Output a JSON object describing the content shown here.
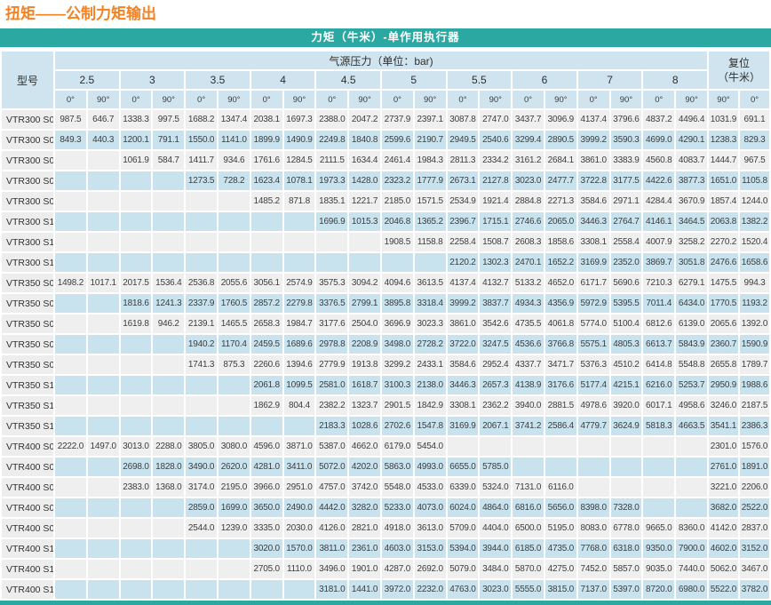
{
  "title": "扭矩——公制力矩输出",
  "colors": {
    "teal": "#2ba8a2",
    "title_orange": "#f58220",
    "header_blue": "#cfe4ef",
    "stripe_blue": "#c8e2ee",
    "stripe_gray": "#efefef",
    "model_col_gray": "#ededed"
  },
  "table": {
    "banner": "力矩（牛米）-单作用执行器",
    "model_header": "型号",
    "pressure_header": "气源压力（单位：bar)",
    "reset_header_line1": "复位",
    "reset_header_line2": "（牛米）",
    "pressures": [
      "2.5",
      "3",
      "3.5",
      "4",
      "4.5",
      "5",
      "5.5",
      "6",
      "7",
      "8"
    ],
    "deg0": "0°",
    "deg90": "90°",
    "reset_degrees": [
      "90°",
      "0°"
    ],
    "rows": [
      {
        "model": "VTR300 S05",
        "values": [
          "987.5",
          "646.7",
          "1338.3",
          "997.5",
          "1688.2",
          "1347.4",
          "2038.1",
          "1697.3",
          "2388.0",
          "2047.2",
          "2737.9",
          "2397.1",
          "3087.8",
          "2747.0",
          "3437.7",
          "3096.9",
          "4137.4",
          "3796.6",
          "4837.2",
          "4496.4",
          "1031.9",
          "691.1"
        ]
      },
      {
        "model": "VTR300 S06",
        "values": [
          "849.3",
          "440.3",
          "1200.1",
          "791.1",
          "1550.0",
          "1141.0",
          "1899.9",
          "1490.9",
          "2249.8",
          "1840.8",
          "2599.6",
          "2190.7",
          "2949.5",
          "2540.6",
          "3299.4",
          "2890.5",
          "3999.2",
          "3590.3",
          "4699.0",
          "4290.1",
          "1238.3",
          "829.3"
        ]
      },
      {
        "model": "VTR300 S07",
        "values": [
          null,
          null,
          "1061.9",
          "584.7",
          "1411.7",
          "934.6",
          "1761.6",
          "1284.5",
          "2111.5",
          "1634.4",
          "2461.4",
          "1984.3",
          "2811.3",
          "2334.2",
          "3161.2",
          "2684.1",
          "3861.0",
          "3383.9",
          "4560.8",
          "4083.7",
          "1444.7",
          "967.5"
        ]
      },
      {
        "model": "VTR300 S08",
        "values": [
          null,
          null,
          null,
          null,
          "1273.5",
          "728.2",
          "1623.4",
          "1078.1",
          "1973.3",
          "1428.0",
          "2323.2",
          "1777.9",
          "2673.1",
          "2127.8",
          "3023.0",
          "2477.7",
          "3722.8",
          "3177.5",
          "4422.6",
          "3877.3",
          "1651.0",
          "1105.8"
        ]
      },
      {
        "model": "VTR300 S09",
        "values": [
          null,
          null,
          null,
          null,
          null,
          null,
          "1485.2",
          "871.8",
          "1835.1",
          "1221.7",
          "2185.0",
          "1571.5",
          "2534.9",
          "1921.4",
          "2884.8",
          "2271.3",
          "3584.6",
          "2971.1",
          "4284.4",
          "3670.9",
          "1857.4",
          "1244.0"
        ]
      },
      {
        "model": "VTR300 S10",
        "values": [
          null,
          null,
          null,
          null,
          null,
          null,
          null,
          null,
          "1696.9",
          "1015.3",
          "2046.8",
          "1365.2",
          "2396.7",
          "1715.1",
          "2746.6",
          "2065.0",
          "3446.3",
          "2764.7",
          "4146.1",
          "3464.5",
          "2063.8",
          "1382.2"
        ]
      },
      {
        "model": "VTR300 S11",
        "values": [
          null,
          null,
          null,
          null,
          null,
          null,
          null,
          null,
          null,
          null,
          "1908.5",
          "1158.8",
          "2258.4",
          "1508.7",
          "2608.3",
          "1858.6",
          "3308.1",
          "2558.4",
          "4007.9",
          "3258.2",
          "2270.2",
          "1520.4"
        ]
      },
      {
        "model": "VTR300 S12",
        "values": [
          null,
          null,
          null,
          null,
          null,
          null,
          null,
          null,
          null,
          null,
          null,
          null,
          "2120.2",
          "1302.3",
          "2470.1",
          "1652.2",
          "3169.9",
          "2352.0",
          "3869.7",
          "3051.8",
          "2476.6",
          "1658.6"
        ]
      },
      {
        "model": "VTR350 S05",
        "values": [
          "1498.2",
          "1017.1",
          "2017.5",
          "1536.4",
          "2536.8",
          "2055.6",
          "3056.1",
          "2574.9",
          "3575.3",
          "3094.2",
          "4094.6",
          "3613.5",
          "4137.4",
          "4132.7",
          "5133.2",
          "4652.0",
          "6171.7",
          "5690.6",
          "7210.3",
          "6279.1",
          "1475.5",
          "994.3"
        ]
      },
      {
        "model": "VTR350 S06",
        "values": [
          null,
          null,
          "1818.6",
          "1241.3",
          "2337.9",
          "1760.5",
          "2857.2",
          "2279.8",
          "3376.5",
          "2799.1",
          "3895.8",
          "3318.4",
          "3999.2",
          "3837.7",
          "4934.3",
          "4356.9",
          "5972.9",
          "5395.5",
          "7011.4",
          "6434.0",
          "1770.5",
          "1193.2"
        ]
      },
      {
        "model": "VTR350 S07",
        "values": [
          null,
          null,
          "1619.8",
          "946.2",
          "2139.1",
          "1465.5",
          "2658.3",
          "1984.7",
          "3177.6",
          "2504.0",
          "3696.9",
          "3023.3",
          "3861.0",
          "3542.6",
          "4735.5",
          "4061.8",
          "5774.0",
          "5100.4",
          "6812.6",
          "6139.0",
          "2065.6",
          "1392.0"
        ]
      },
      {
        "model": "VTR350 S08",
        "values": [
          null,
          null,
          null,
          null,
          "1940.2",
          "1170.4",
          "2459.5",
          "1689.6",
          "2978.8",
          "2208.9",
          "3498.0",
          "2728.2",
          "3722.0",
          "3247.5",
          "4536.6",
          "3766.8",
          "5575.1",
          "4805.3",
          "6613.7",
          "5843.9",
          "2360.7",
          "1590.9"
        ]
      },
      {
        "model": "VTR350 S09",
        "values": [
          null,
          null,
          null,
          null,
          "1741.3",
          "875.3",
          "2260.6",
          "1394.6",
          "2779.9",
          "1913.8",
          "3299.2",
          "2433.1",
          "3584.6",
          "2952.4",
          "4337.7",
          "3471.7",
          "5376.3",
          "4510.2",
          "6414.8",
          "5548.8",
          "2655.8",
          "1789.7"
        ]
      },
      {
        "model": "VTR350 S10",
        "values": [
          null,
          null,
          null,
          null,
          null,
          null,
          "2061.8",
          "1099.5",
          "2581.0",
          "1618.7",
          "3100.3",
          "2138.0",
          "3446.3",
          "2657.3",
          "4138.9",
          "3176.6",
          "5177.4",
          "4215.1",
          "6216.0",
          "5253.7",
          "2950.9",
          "1988.6"
        ]
      },
      {
        "model": "VTR350 S11",
        "values": [
          null,
          null,
          null,
          null,
          null,
          null,
          "1862.9",
          "804.4",
          "2382.2",
          "1323.7",
          "2901.5",
          "1842.9",
          "3308.1",
          "2362.2",
          "3940.0",
          "2881.5",
          "4978.6",
          "3920.0",
          "6017.1",
          "4958.6",
          "3246.0",
          "2187.5"
        ]
      },
      {
        "model": "VTR350 S12",
        "values": [
          null,
          null,
          null,
          null,
          null,
          null,
          null,
          null,
          "2183.3",
          "1028.6",
          "2702.6",
          "1547.8",
          "3169.9",
          "2067.1",
          "3741.2",
          "2586.4",
          "4779.7",
          "3624.9",
          "5818.3",
          "4663.5",
          "3541.1",
          "2386.3"
        ]
      },
      {
        "model": "VTR400 S05",
        "values": [
          "2222.0",
          "1497.0",
          "3013.0",
          "2288.0",
          "3805.0",
          "3080.0",
          "4596.0",
          "3871.0",
          "5387.0",
          "4662.0",
          "6179.0",
          "5454.0",
          null,
          null,
          null,
          null,
          null,
          null,
          null,
          null,
          "2301.0",
          "1576.0"
        ]
      },
      {
        "model": "VTR400 S06",
        "values": [
          null,
          null,
          "2698.0",
          "1828.0",
          "3490.0",
          "2620.0",
          "4281.0",
          "3411.0",
          "5072.0",
          "4202.0",
          "5863.0",
          "4993.0",
          "6655.0",
          "5785.0",
          null,
          null,
          null,
          null,
          null,
          null,
          "2761.0",
          "1891.0"
        ]
      },
      {
        "model": "VTR400 S07",
        "values": [
          null,
          null,
          "2383.0",
          "1368.0",
          "3174.0",
          "2195.0",
          "3966.0",
          "2951.0",
          "4757.0",
          "3742.0",
          "5548.0",
          "4533.0",
          "6339.0",
          "5324.0",
          "7131.0",
          "6116.0",
          null,
          null,
          null,
          null,
          "3221.0",
          "2206.0"
        ]
      },
      {
        "model": "VTR400 S08",
        "values": [
          null,
          null,
          null,
          null,
          "2859.0",
          "1699.0",
          "3650.0",
          "2490.0",
          "4442.0",
          "3282.0",
          "5233.0",
          "4073.0",
          "6024.0",
          "4864.0",
          "6816.0",
          "5656.0",
          "8398.0",
          "7328.0",
          null,
          null,
          "3682.0",
          "2522.0"
        ]
      },
      {
        "model": "VTR400 S09",
        "values": [
          null,
          null,
          null,
          null,
          "2544.0",
          "1239.0",
          "3335.0",
          "2030.0",
          "4126.0",
          "2821.0",
          "4918.0",
          "3613.0",
          "5709.0",
          "4404.0",
          "6500.0",
          "5195.0",
          "8083.0",
          "6778.0",
          "9665.0",
          "8360.0",
          "4142.0",
          "2837.0"
        ]
      },
      {
        "model": "VTR400 S10",
        "values": [
          null,
          null,
          null,
          null,
          null,
          null,
          "3020.0",
          "1570.0",
          "3811.0",
          "2361.0",
          "4603.0",
          "3153.0",
          "5394.0",
          "3944.0",
          "6185.0",
          "4735.0",
          "7768.0",
          "6318.0",
          "9350.0",
          "7900.0",
          "4602.0",
          "3152.0"
        ]
      },
      {
        "model": "VTR400 S11",
        "values": [
          null,
          null,
          null,
          null,
          null,
          null,
          "2705.0",
          "1110.0",
          "3496.0",
          "1901.0",
          "4287.0",
          "2692.0",
          "5079.0",
          "3484.0",
          "5870.0",
          "4275.0",
          "7452.0",
          "5857.0",
          "9035.0",
          "7440.0",
          "5062.0",
          "3467.0"
        ]
      },
      {
        "model": "VTR400 S12",
        "values": [
          null,
          null,
          null,
          null,
          null,
          null,
          null,
          null,
          "3181.0",
          "1441.0",
          "3972.0",
          "2232.0",
          "4763.0",
          "3023.0",
          "5555.0",
          "3815.0",
          "7137.0",
          "5397.0",
          "8720.0",
          "6980.0",
          "5522.0",
          "3782.0"
        ]
      }
    ]
  }
}
